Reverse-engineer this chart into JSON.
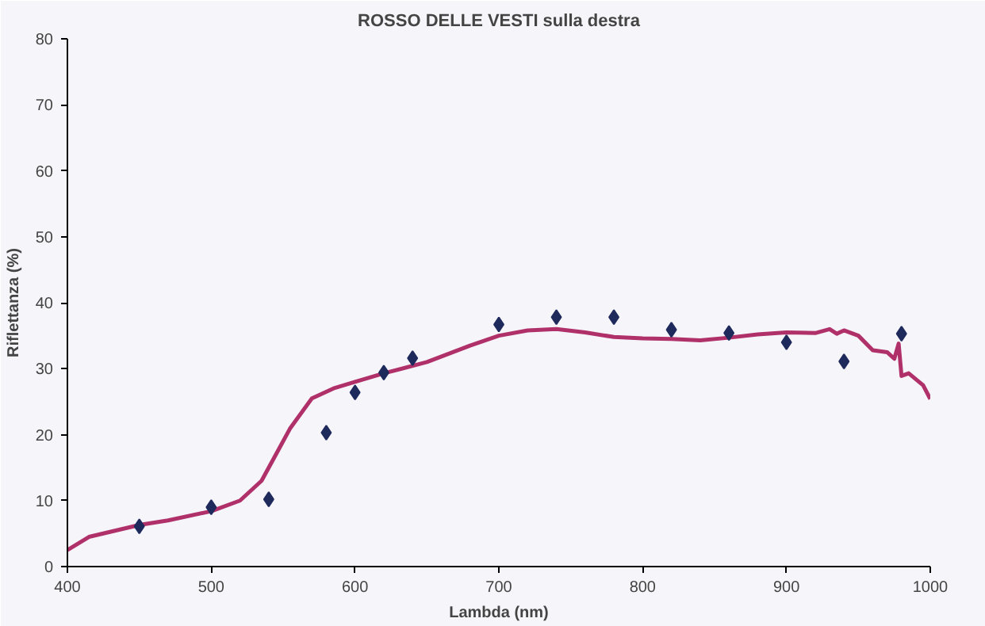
{
  "chart_data": {
    "type": "line",
    "title": "ROSSO DELLE VESTI sulla destra",
    "xlabel": "Lambda (nm)",
    "ylabel": "Riflettanza (%)",
    "xlim": [
      400,
      1000
    ],
    "xticks": [
      400,
      500,
      600,
      700,
      800,
      900,
      1000
    ],
    "ylim": [
      0,
      80
    ],
    "yticks": [
      0,
      10,
      20,
      30,
      40,
      50,
      60,
      70,
      80
    ],
    "grid": false,
    "series": [
      {
        "color": "#b0306a",
        "line_style": "solid",
        "marker": "none",
        "x": [
          400,
          415,
          450,
          470,
          500,
          520,
          535,
          545,
          555,
          570,
          585,
          600,
          620,
          650,
          680,
          700,
          720,
          740,
          760,
          780,
          800,
          820,
          840,
          860,
          880,
          900,
          920,
          930,
          935,
          940,
          950,
          960,
          970,
          975,
          978,
          980,
          985,
          995,
          1000
        ],
        "values": [
          2.5,
          4.5,
          6.3,
          7,
          8.4,
          10,
          13,
          17,
          21,
          25.5,
          27,
          28,
          29.3,
          31,
          33.5,
          35,
          35.8,
          36,
          35.5,
          34.8,
          34.6,
          34.5,
          34.3,
          34.7,
          35.2,
          35.5,
          35.4,
          36,
          35.3,
          35.8,
          35,
          32.8,
          32.5,
          31.5,
          33.8,
          28.9,
          29.3,
          27.5,
          25.4
        ]
      },
      {
        "type": "scatter",
        "color": "#1f2a5c",
        "marker": "diamond",
        "x": [
          450,
          500,
          540,
          580,
          600,
          620,
          640,
          700,
          740,
          780,
          820,
          860,
          900,
          940,
          980
        ],
        "values": [
          6.1,
          9,
          10.2,
          20.3,
          26.4,
          29.4,
          31.6,
          36.7,
          37.8,
          37.8,
          35.9,
          35.4,
          34,
          31.1,
          35.3
        ]
      }
    ]
  }
}
